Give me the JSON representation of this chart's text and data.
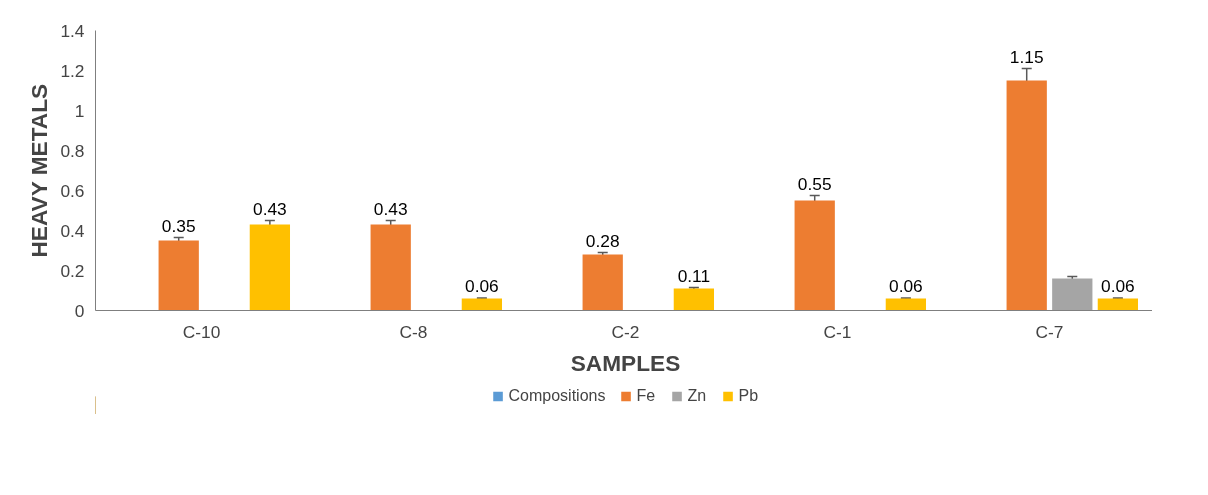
{
  "chart_data": {
    "type": "bar",
    "xlabel": "SAMPLES",
    "ylabel": "HEAVY METALS",
    "categories": [
      "C-10",
      "C-8",
      "C-2",
      "C-1",
      "C-7"
    ],
    "series": [
      {
        "name": "Compositions",
        "color": "#5b9bd5",
        "values": [
          0,
          0,
          0,
          0,
          0
        ]
      },
      {
        "name": "Fe",
        "color": "#ed7d31",
        "values": [
          0.35,
          0.43,
          0.28,
          0.55,
          1.15
        ],
        "errors": [
          0.015,
          0.02,
          0.01,
          0.025,
          0.06
        ],
        "value_labels": [
          "0.35",
          "0.43",
          "0.28",
          "0.55",
          "1.15"
        ]
      },
      {
        "name": "Zn",
        "color": "#a5a5a5",
        "values": [
          0,
          0,
          0,
          0,
          0.16
        ],
        "errors": [
          null,
          null,
          null,
          null,
          0.01
        ]
      },
      {
        "name": "Pb",
        "color": "#ffc000",
        "values": [
          0.43,
          0.06,
          0.11,
          0.06,
          0.06
        ],
        "errors": [
          0.02,
          0.003,
          0.005,
          0.003,
          0.003
        ],
        "value_labels": [
          "0.43",
          "0.06",
          "0.11",
          "0.06",
          "0.06"
        ]
      }
    ],
    "ylim": [
      0,
      1.4
    ],
    "yticks": [
      0,
      0.2,
      0.4,
      0.6,
      0.8,
      1,
      1.2,
      1.4
    ],
    "grid": false,
    "legend": "bottom"
  }
}
